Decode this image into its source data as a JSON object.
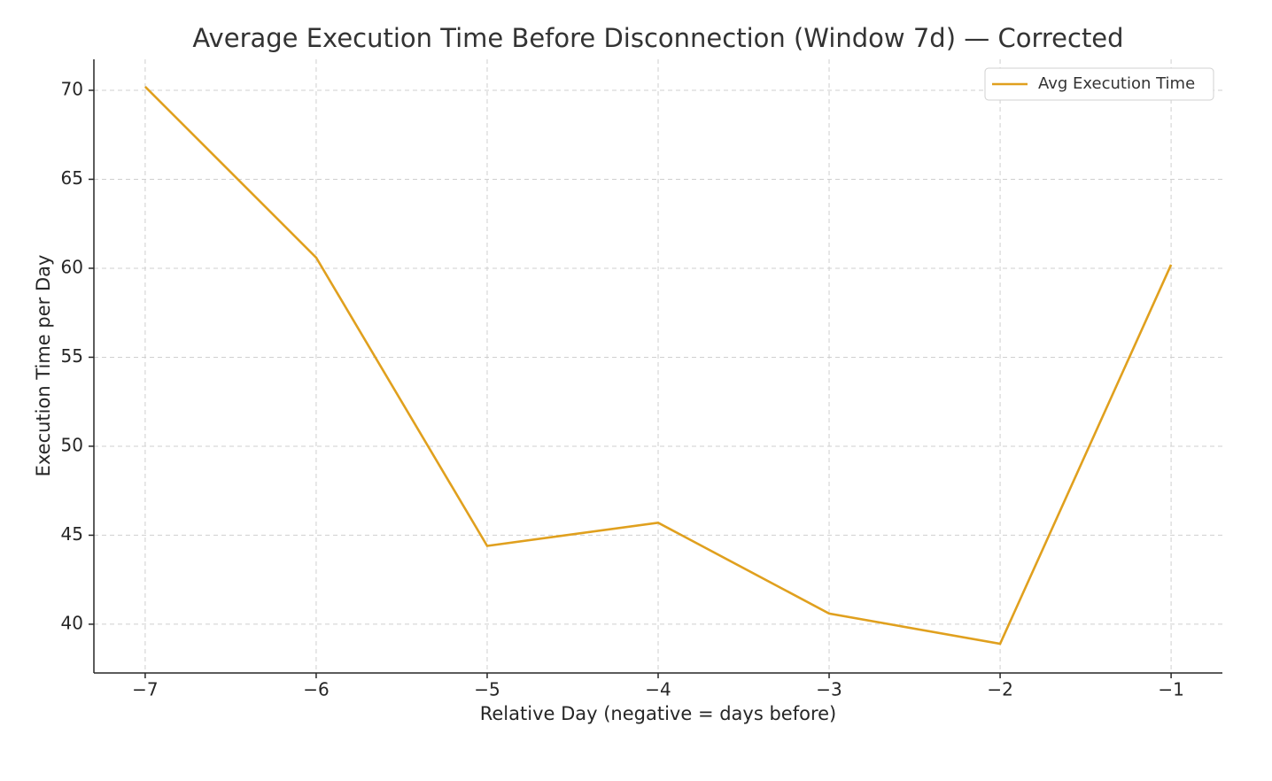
{
  "chart_data": {
    "type": "line",
    "title": "Average Execution Time Before Disconnection (Window 7d) — Corrected",
    "x_label": "Relative Day (negative = days before)",
    "y_label": "Execution Time per Day",
    "x": [
      -7,
      -6,
      -5,
      -4,
      -3,
      -2,
      -1
    ],
    "series": [
      {
        "name": "Avg Execution Time",
        "color": "#e0a01e",
        "values": [
          70.2,
          60.6,
          44.4,
          45.7,
          40.6,
          38.9,
          60.2
        ]
      }
    ],
    "xlim": [
      -7.3,
      -0.7
    ],
    "ylim": [
      37.26,
      71.74
    ],
    "xticks": [
      {
        "value": -7,
        "label": "−7"
      },
      {
        "value": -6,
        "label": "−6"
      },
      {
        "value": -5,
        "label": "−5"
      },
      {
        "value": -4,
        "label": "−4"
      },
      {
        "value": -3,
        "label": "−3"
      },
      {
        "value": -2,
        "label": "−2"
      },
      {
        "value": -1,
        "label": "−1"
      }
    ],
    "yticks": [
      40,
      45,
      50,
      55,
      60,
      65,
      70
    ],
    "grid": true,
    "legend": "upper right"
  }
}
